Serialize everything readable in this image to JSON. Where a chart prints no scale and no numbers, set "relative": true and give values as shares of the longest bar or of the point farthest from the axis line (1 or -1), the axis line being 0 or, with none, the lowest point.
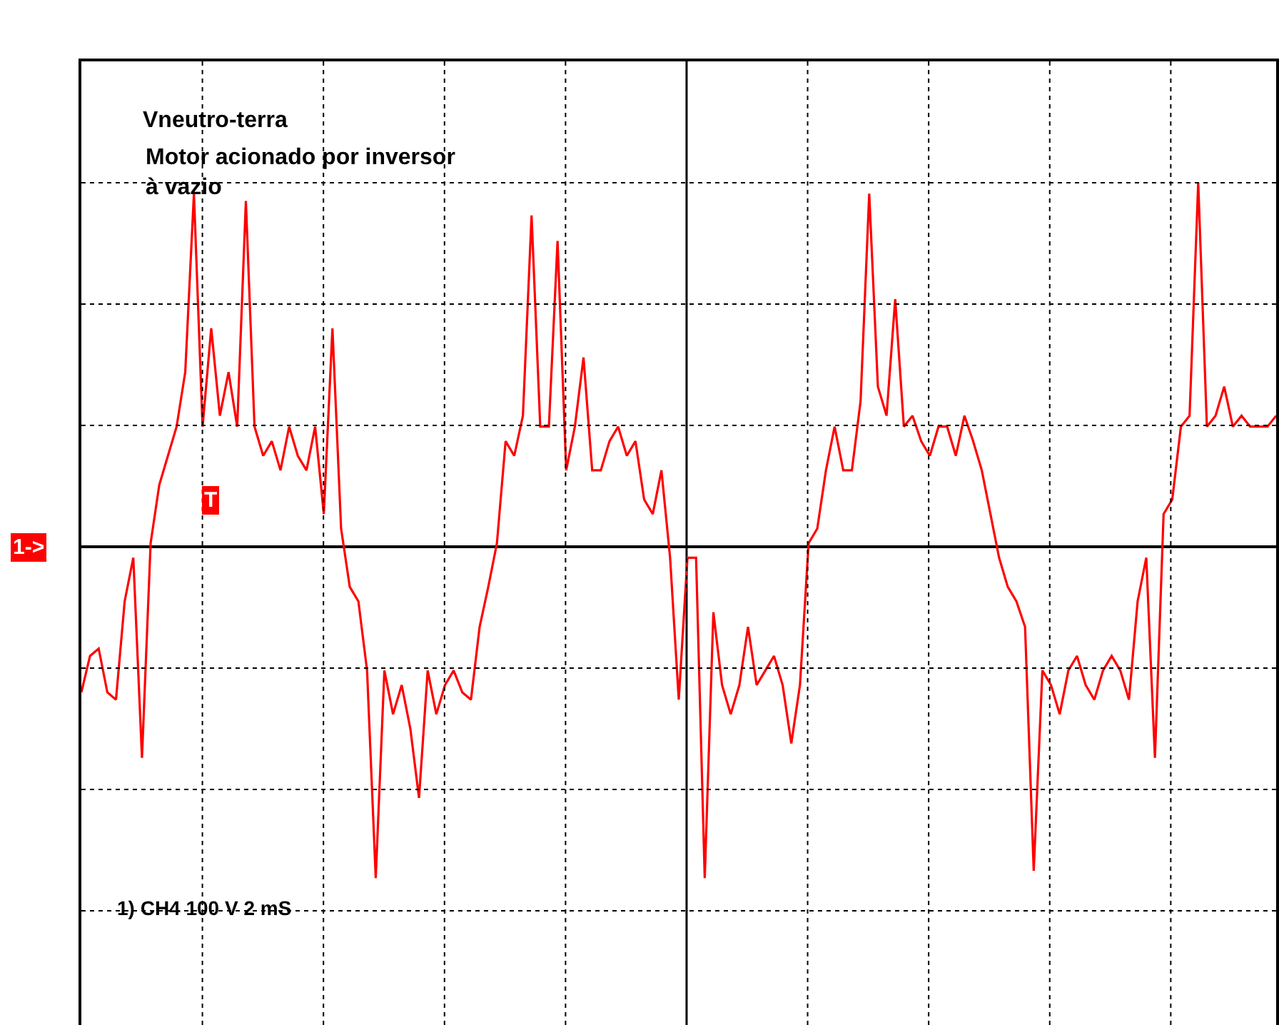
{
  "chart_data": {
    "type": "line",
    "title": "Vneutro-terra",
    "subtitle": "Motor acionado por inversor\nà vazio",
    "relative": true,
    "grid": true,
    "marker": "none",
    "line_style": "solid",
    "annotations": [
      "1) CH4 100 V 2 mS",
      "1->",
      "T"
    ],
    "categories": [
      null,
      null,
      null,
      null,
      null,
      null,
      null,
      null,
      null,
      null,
      null,
      null,
      null,
      null,
      null,
      null,
      null,
      null,
      null,
      null,
      null,
      null,
      null,
      null,
      null,
      null,
      null,
      null,
      null,
      null,
      null,
      null,
      null,
      null,
      null,
      null,
      null,
      null,
      null,
      null,
      null,
      null,
      null,
      null,
      null,
      null,
      null,
      null,
      null,
      null,
      null,
      null,
      null,
      null,
      null,
      null,
      null,
      null,
      null,
      null,
      null,
      null,
      null,
      null,
      null,
      null,
      null,
      null,
      null,
      null,
      null,
      null,
      null,
      null,
      null,
      null,
      null,
      null,
      null,
      null,
      null,
      null,
      null,
      null,
      null,
      null,
      null,
      null,
      null,
      null,
      null,
      null,
      null,
      null,
      null,
      null,
      null,
      null,
      null,
      null,
      null,
      null,
      null,
      null,
      null,
      null,
      null,
      null,
      null,
      null,
      null,
      null,
      null,
      null,
      null,
      null,
      null,
      null,
      null,
      null,
      null,
      null,
      null,
      null,
      null,
      null,
      null,
      null,
      null,
      null,
      null,
      null,
      null,
      null,
      null,
      null,
      null,
      null,
      null
    ],
    "series": [
      {
        "color": "#ff0000",
        "values": [
          -0.4,
          -0.3,
          -0.28,
          -0.4,
          -0.42,
          -0.15,
          -0.03,
          -0.58,
          0.01,
          0.17,
          0.25,
          0.33,
          0.48,
          0.97,
          0.33,
          0.6,
          0.36,
          0.48,
          0.33,
          0.95,
          0.33,
          0.25,
          0.29,
          0.21,
          0.33,
          0.25,
          0.21,
          0.33,
          0.09,
          0.6,
          0.05,
          -0.11,
          -0.15,
          -0.34,
          -0.91,
          -0.34,
          -0.46,
          -0.38,
          -0.5,
          -0.69,
          -0.34,
          -0.46,
          -0.38,
          -0.34,
          -0.4,
          -0.42,
          -0.22,
          -0.11,
          0.01,
          0.29,
          0.25,
          0.36,
          0.91,
          0.33,
          0.33,
          0.84,
          0.21,
          0.33,
          0.52,
          0.21,
          0.21,
          0.29,
          0.33,
          0.25,
          0.29,
          0.13,
          0.09,
          0.21,
          -0.03,
          -0.42,
          -0.03,
          -0.03,
          -0.91,
          -0.18,
          -0.38,
          -0.46,
          -0.38,
          -0.22,
          -0.38,
          -0.34,
          -0.3,
          -0.38,
          -0.54,
          -0.38,
          0.01,
          0.05,
          0.21,
          0.33,
          0.21,
          0.21,
          0.4,
          0.97,
          0.44,
          0.36,
          0.68,
          0.33,
          0.36,
          0.29,
          0.25,
          0.33,
          0.33,
          0.25,
          0.36,
          0.29,
          0.21,
          0.09,
          -0.03,
          -0.11,
          -0.15,
          -0.22,
          -0.89,
          -0.34,
          -0.38,
          -0.46,
          -0.34,
          -0.3,
          -0.38,
          -0.42,
          -0.34,
          -0.3,
          -0.34,
          -0.42,
          -0.15,
          -0.03,
          -0.58,
          0.09,
          0.13,
          0.33,
          0.36,
          1.0,
          0.33,
          0.36,
          0.44,
          0.33,
          0.36,
          0.33,
          0.33,
          0.33,
          0.36
        ]
      }
    ]
  }
}
